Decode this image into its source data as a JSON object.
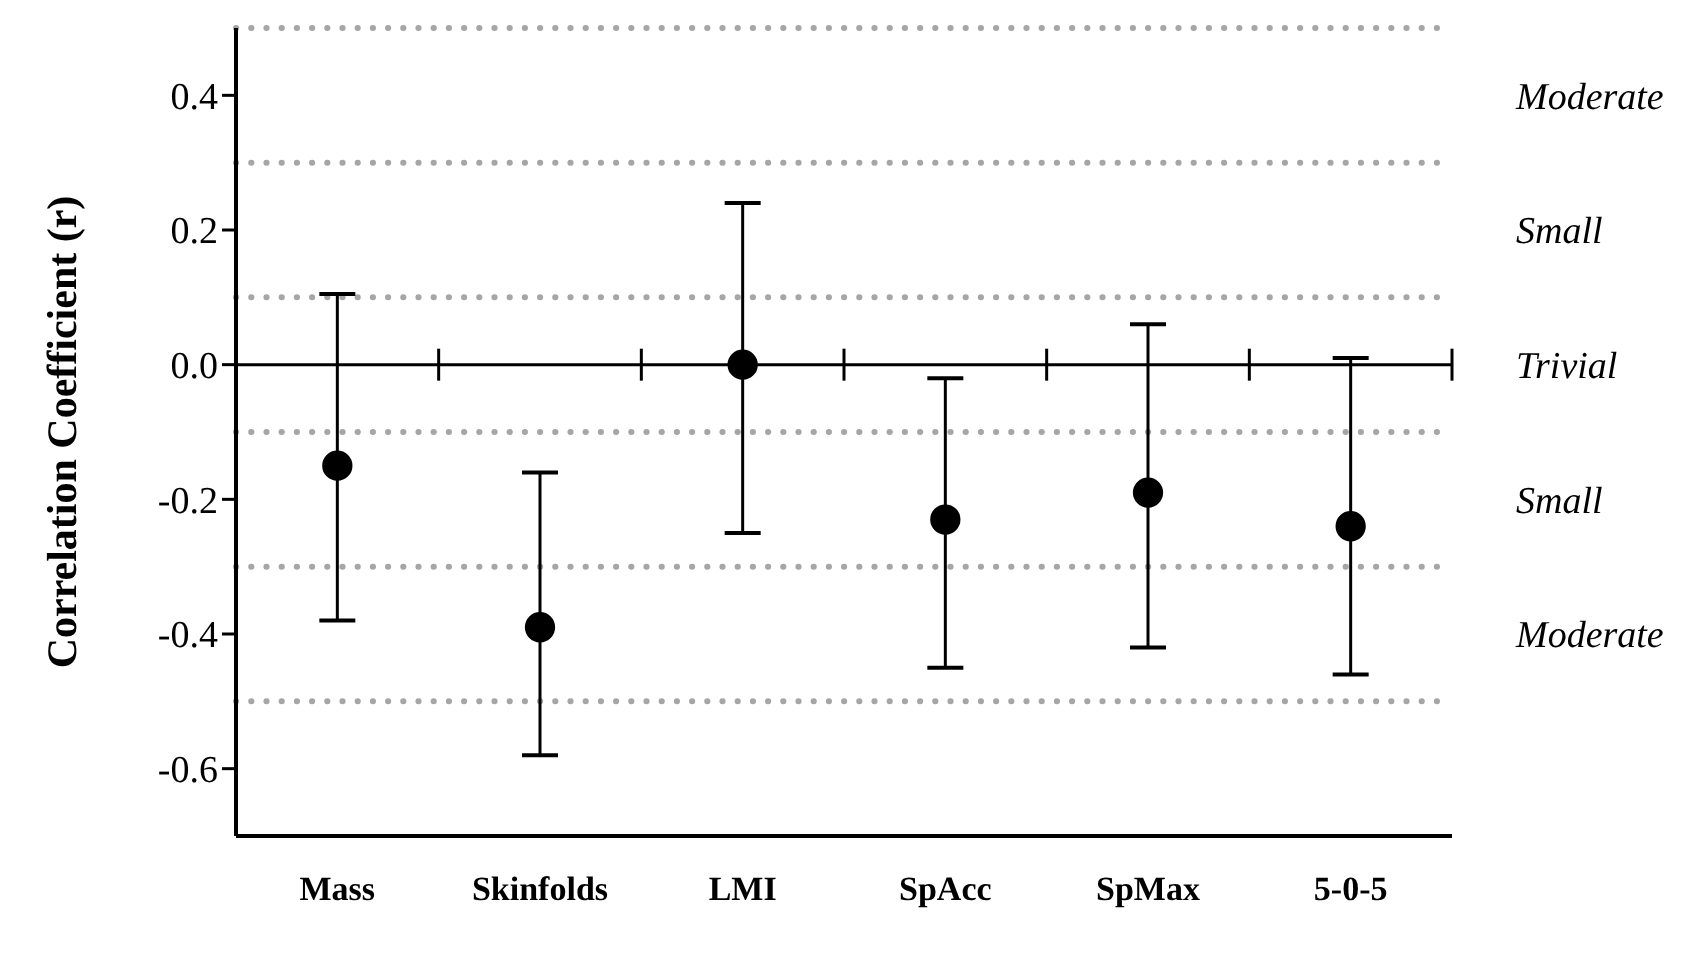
{
  "chart_data": {
    "type": "scatter",
    "ylabel": "Correlation Coefficient (r)",
    "categories": [
      "Mass",
      "Skinfolds",
      "LMI",
      "SpAcc",
      "SpMax",
      "5-0-5"
    ],
    "series": [
      {
        "color": "#000000",
        "values": [
          -0.15,
          -0.39,
          0.0,
          -0.23,
          -0.19,
          -0.24
        ],
        "errors": [
          [
            -0.38,
            0.105
          ],
          [
            -0.58,
            -0.16
          ],
          [
            -0.25,
            0.24
          ],
          [
            -0.45,
            -0.02
          ],
          [
            -0.42,
            0.06
          ],
          [
            -0.46,
            0.01
          ]
        ]
      }
    ],
    "marker": "circle",
    "ylim": [
      -0.7,
      0.5
    ],
    "yticks": [
      0.4,
      0.2,
      {
        "value": 0,
        "label": "0.0"
      },
      -0.2,
      -0.4,
      -0.6
    ],
    "grid": false,
    "ref_lines": [
      {
        "axis": "y",
        "value": 0,
        "color": "#000000",
        "line_style": "solid"
      },
      {
        "axis": "y",
        "value": 0.5,
        "color": "#a6a6a6",
        "line_style": "dotted"
      },
      {
        "axis": "y",
        "value": 0.3,
        "color": "#a6a6a6",
        "line_style": "dotted"
      },
      {
        "axis": "y",
        "value": 0.1,
        "color": "#a6a6a6",
        "line_style": "dotted"
      },
      {
        "axis": "y",
        "value": -0.1,
        "color": "#a6a6a6",
        "line_style": "dotted"
      },
      {
        "axis": "y",
        "value": -0.3,
        "color": "#a6a6a6",
        "line_style": "dotted"
      },
      {
        "axis": "y",
        "value": -0.5,
        "color": "#a6a6a6",
        "line_style": "dotted"
      }
    ],
    "annotations": [
      "Moderate",
      "Small",
      "Trivial",
      "Small",
      "Moderate"
    ]
  }
}
